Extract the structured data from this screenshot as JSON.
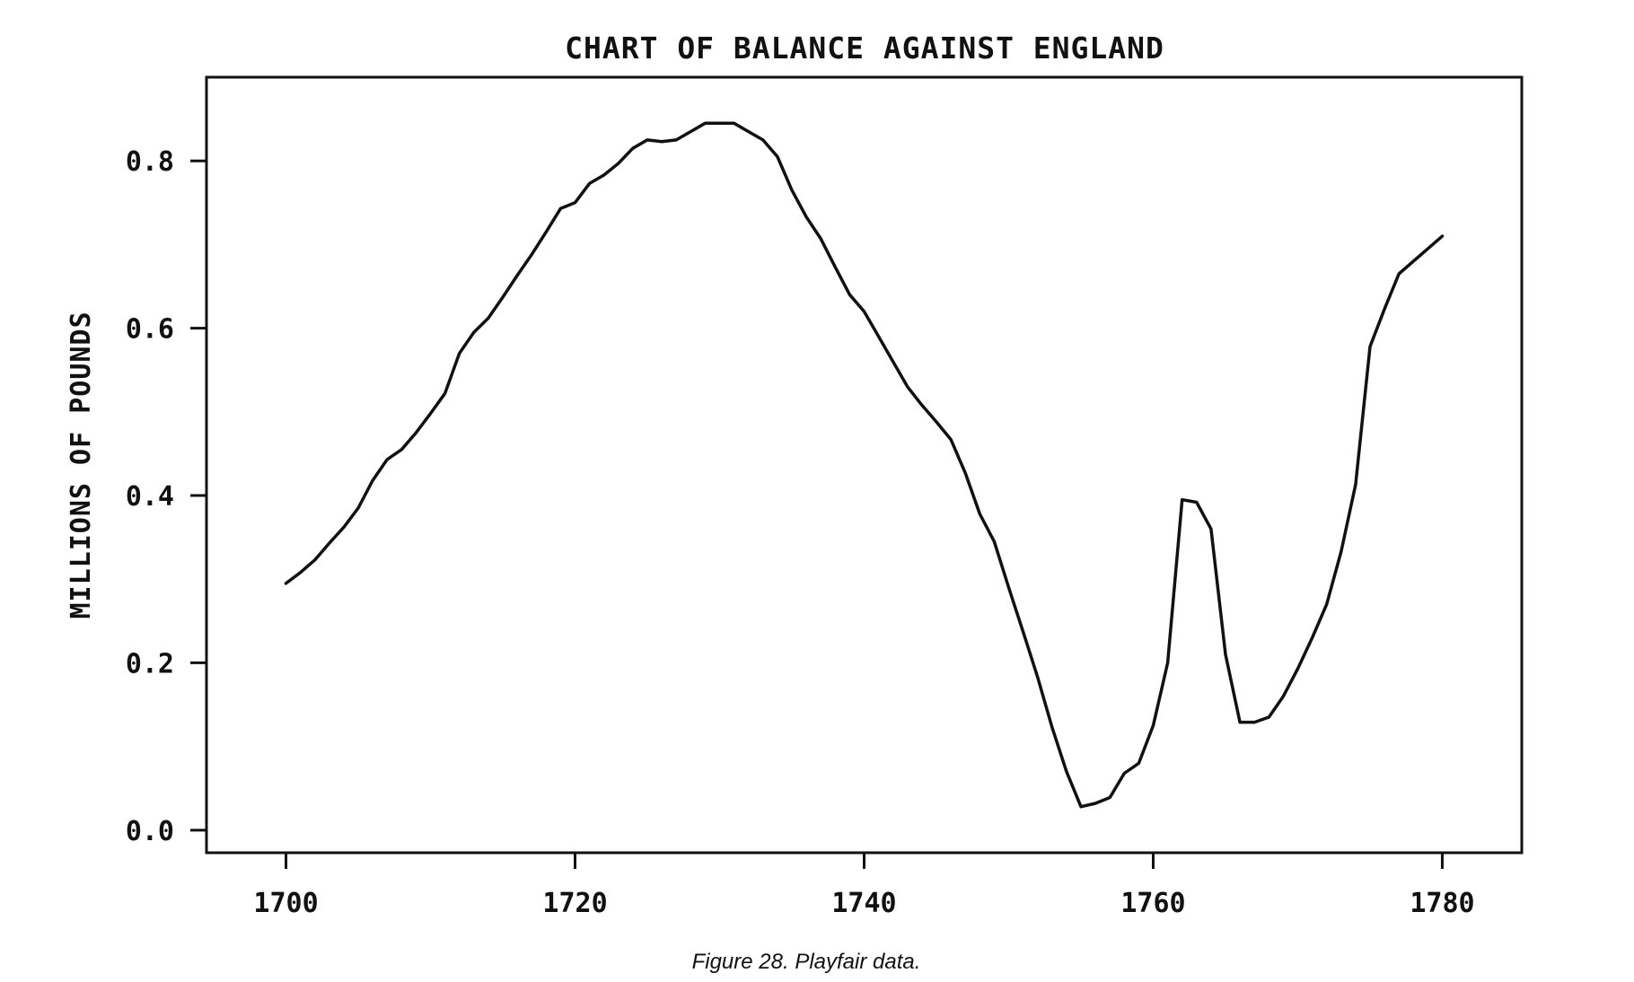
{
  "chart_data": {
    "type": "line",
    "title": "CHART OF BALANCE AGAINST ENGLAND",
    "xlabel": "",
    "ylabel": "MILLIONS OF POUNDS",
    "caption": "Figure 28. Playfair data.",
    "xlim": [
      1694.5,
      1785.5
    ],
    "ylim": [
      -0.027,
      0.9
    ],
    "x_ticks": [
      1700,
      1720,
      1740,
      1760,
      1780
    ],
    "x_tick_labels": [
      "1700",
      "1720",
      "1740",
      "1760",
      "1780"
    ],
    "y_ticks": [
      0.0,
      0.2,
      0.4,
      0.6,
      0.8
    ],
    "y_tick_labels": [
      "0.0",
      "0.2",
      "0.4",
      "0.6",
      "0.8"
    ],
    "grid": false,
    "series": [
      {
        "x": [
          1700,
          1701,
          1702,
          1703,
          1704,
          1705,
          1706,
          1707,
          1708,
          1709,
          1710,
          1711,
          1712,
          1713,
          1714,
          1715,
          1716,
          1717,
          1718,
          1719,
          1720,
          1721,
          1722,
          1723,
          1724,
          1725,
          1726,
          1727,
          1728,
          1729,
          1730,
          1731,
          1732,
          1733,
          1734,
          1735,
          1736,
          1737,
          1738,
          1739,
          1740,
          1741,
          1742,
          1743,
          1744,
          1745,
          1746,
          1747,
          1748,
          1749,
          1750,
          1751,
          1752,
          1753,
          1754,
          1755,
          1756,
          1757,
          1758,
          1759,
          1760,
          1761,
          1762,
          1763,
          1764,
          1765,
          1766,
          1767,
          1768,
          1769,
          1770,
          1771,
          1772,
          1773,
          1774,
          1775,
          1776,
          1777,
          1778,
          1779,
          1780
        ],
        "y": [
          0.295,
          0.308,
          0.323,
          0.343,
          0.362,
          0.385,
          0.418,
          0.443,
          0.455,
          0.475,
          0.498,
          0.522,
          0.57,
          0.595,
          0.612,
          0.637,
          0.663,
          0.688,
          0.715,
          0.743,
          0.75,
          0.773,
          0.783,
          0.797,
          0.815,
          0.825,
          0.823,
          0.825,
          0.835,
          0.845,
          0.845,
          0.845,
          0.835,
          0.825,
          0.805,
          0.765,
          0.733,
          0.707,
          0.673,
          0.64,
          0.62,
          0.59,
          0.56,
          0.53,
          0.508,
          0.488,
          0.467,
          0.427,
          0.378,
          0.345,
          0.29,
          0.237,
          0.183,
          0.123,
          0.07,
          0.028,
          0.032,
          0.039,
          0.068,
          0.08,
          0.125,
          0.2,
          0.395,
          0.392,
          0.36,
          0.21,
          0.129,
          0.129,
          0.135,
          0.16,
          0.193,
          0.23,
          0.27,
          0.333,
          0.413,
          0.578,
          0.623,
          0.665,
          0.68,
          0.695,
          0.71
        ]
      }
    ]
  }
}
